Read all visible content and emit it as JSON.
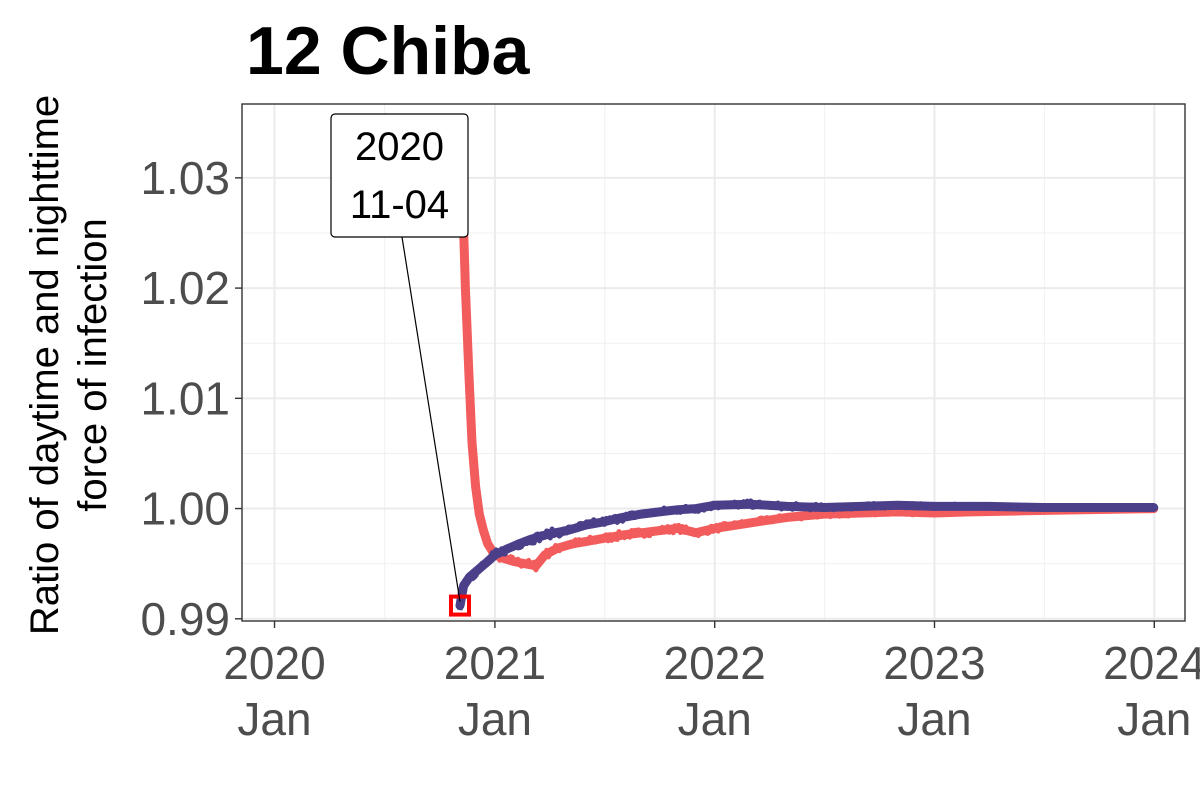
{
  "chart_data": {
    "type": "line",
    "title": "12 Chiba",
    "ylabel_lines": [
      "Ratio of daytime and nighttime",
      "force of infection"
    ],
    "xlabel": "",
    "ylim": [
      0.9898,
      1.0367
    ],
    "xlim": [
      "2019-11-08",
      "2024-02-21"
    ],
    "yticks": [
      {
        "value": 0.99,
        "label": "0.99"
      },
      {
        "value": 1.0,
        "label": "1.00"
      },
      {
        "value": 1.01,
        "label": "1.01"
      },
      {
        "value": 1.02,
        "label": "1.02"
      },
      {
        "value": 1.03,
        "label": "1.03"
      }
    ],
    "xticks": [
      {
        "date": "2020-01-01",
        "line1": "2020",
        "line2": "Jan"
      },
      {
        "date": "2021-01-01",
        "line1": "2021",
        "line2": "Jan"
      },
      {
        "date": "2022-01-01",
        "line1": "2022",
        "line2": "Jan"
      },
      {
        "date": "2023-01-01",
        "line1": "2023",
        "line2": "Jan"
      },
      {
        "date": "2024-01-01",
        "line1": "2024",
        "line2": "Jan"
      }
    ],
    "grid": true,
    "legend": "none",
    "series": [
      {
        "color": "#f25c5c",
        "points": [
          [
            "2020-11-04",
            1.035
          ],
          [
            "2020-11-08",
            1.029
          ],
          [
            "2020-11-13",
            1.02
          ],
          [
            "2020-11-19",
            1.012
          ],
          [
            "2020-11-24",
            1.006
          ],
          [
            "2020-11-30",
            1.002
          ],
          [
            "2020-12-06",
            0.9995
          ],
          [
            "2020-12-13",
            0.998
          ],
          [
            "2020-12-20",
            0.9968
          ],
          [
            "2021-01-01",
            0.9958
          ],
          [
            "2021-01-15",
            0.9955
          ],
          [
            "2021-02-01",
            0.9952
          ],
          [
            "2021-02-20",
            0.995
          ],
          [
            "2021-03-10",
            0.9948
          ],
          [
            "2021-03-25",
            0.9958
          ],
          [
            "2021-04-15",
            0.9964
          ],
          [
            "2021-05-10",
            0.9968
          ],
          [
            "2021-06-01",
            0.997
          ],
          [
            "2021-07-01",
            0.9973
          ],
          [
            "2021-08-01",
            0.9976
          ],
          [
            "2021-09-01",
            0.9978
          ],
          [
            "2021-10-01",
            0.998
          ],
          [
            "2021-11-01",
            0.9982
          ],
          [
            "2021-12-01",
            0.9978
          ],
          [
            "2022-01-01",
            0.9982
          ],
          [
            "2022-03-01",
            0.9987
          ],
          [
            "2022-05-01",
            0.9992
          ],
          [
            "2022-07-01",
            0.9995
          ],
          [
            "2022-09-01",
            0.9996
          ],
          [
            "2022-11-01",
            0.9997
          ],
          [
            "2023-01-01",
            0.9996
          ],
          [
            "2023-03-01",
            0.9997
          ],
          [
            "2023-06-01",
            0.9998
          ],
          [
            "2023-09-01",
            0.9999
          ],
          [
            "2023-12-31",
            1.0
          ]
        ]
      },
      {
        "color": "#4b3f8a",
        "points": [
          [
            "2020-11-04",
            0.9912
          ],
          [
            "2020-11-10",
            0.993
          ],
          [
            "2020-11-20",
            0.9938
          ],
          [
            "2020-12-05",
            0.9945
          ],
          [
            "2020-12-20",
            0.9952
          ],
          [
            "2021-01-01",
            0.9958
          ],
          [
            "2021-01-20",
            0.9963
          ],
          [
            "2021-02-10",
            0.9968
          ],
          [
            "2021-03-01",
            0.9972
          ],
          [
            "2021-04-01",
            0.9977
          ],
          [
            "2021-05-01",
            0.998
          ],
          [
            "2021-06-01",
            0.9985
          ],
          [
            "2021-07-01",
            0.9988
          ],
          [
            "2021-08-01",
            0.9992
          ],
          [
            "2021-09-01",
            0.9995
          ],
          [
            "2021-10-01",
            0.9997
          ],
          [
            "2021-11-01",
            0.9999
          ],
          [
            "2021-12-01",
            1.0
          ],
          [
            "2022-01-01",
            1.0003
          ],
          [
            "2022-03-01",
            1.0004
          ],
          [
            "2022-05-01",
            1.0002
          ],
          [
            "2022-07-01",
            1.0001
          ],
          [
            "2022-09-01",
            1.0002
          ],
          [
            "2022-11-01",
            1.0003
          ],
          [
            "2023-01-01",
            1.0002
          ],
          [
            "2023-04-01",
            1.0002
          ],
          [
            "2023-07-01",
            1.0001
          ],
          [
            "2023-10-01",
            1.0001
          ],
          [
            "2023-12-31",
            1.0001
          ]
        ]
      }
    ],
    "marker": {
      "date": "2020-11-04",
      "value": 0.9912,
      "color": "#ff0000"
    },
    "annotation": {
      "line1": "2020",
      "line2": "11-04",
      "date": "2020-11-04",
      "value": 0.9912
    }
  }
}
